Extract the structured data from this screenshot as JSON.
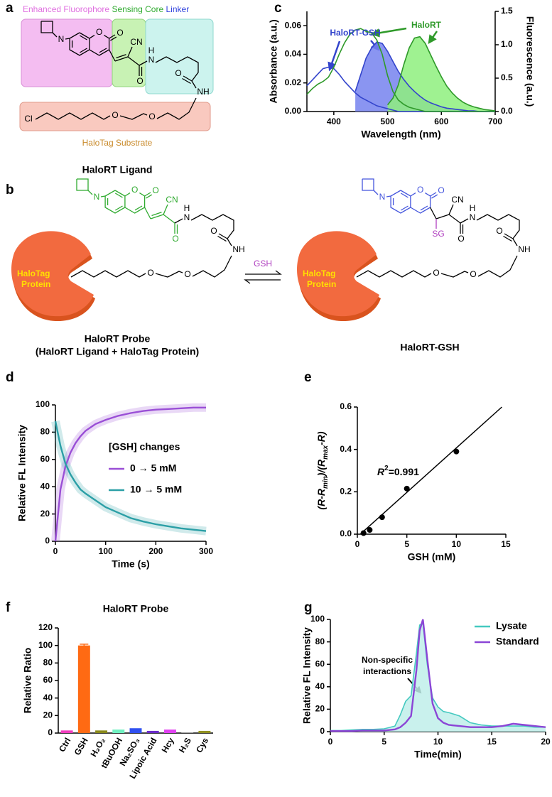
{
  "figure": {
    "panel_labels": [
      "a",
      "b",
      "c",
      "d",
      "e",
      "f",
      "g"
    ],
    "a": {
      "regions": [
        "Enhanced Fluorophore",
        "Sensing Core",
        "Linker",
        "HaloTag Substrate"
      ],
      "caption": "HaloRT Ligand"
    },
    "b": {
      "protein": [
        "HaloTag",
        "Protein"
      ],
      "reagent": "GSH",
      "left_caption": [
        "HaloRT Probe",
        "(HaloRT Ligand + HaloTag Protein)"
      ],
      "right_caption": "HaloRT-GSH"
    },
    "atoms": {
      "n_azetidine": "N",
      "o_ring": "O",
      "o_lactone": "O",
      "cn": "CN",
      "n_amide": "N",
      "h_amide": "H",
      "o_amide": "O",
      "o_linker": "O",
      "nh": "NH",
      "cl": "Cl",
      "o_ether1": "O",
      "o_ether2": "O",
      "sg": "SG"
    }
  },
  "chart_data": [
    {
      "type": "line",
      "xlabel": "Wavelength (nm)",
      "ylabel": "Absorbance (a.u.)",
      "y2label": "Fluorescence (a.u.)",
      "x": [
        350,
        360,
        370,
        380,
        390,
        400,
        410,
        420,
        430,
        440,
        450,
        460,
        470,
        480,
        490,
        500,
        510,
        520,
        530,
        540,
        550,
        560,
        570,
        580,
        590,
        600,
        610,
        620,
        630,
        640,
        650,
        660,
        670,
        680,
        690,
        700
      ],
      "xlim": [
        350,
        700
      ],
      "xticks": [
        400,
        500,
        600,
        700
      ],
      "ylim": [
        0,
        0.07
      ],
      "yticks": [
        {
          "value": 0,
          "label": "0.00"
        },
        0.02,
        0.04,
        0.06
      ],
      "y2lim": [
        0,
        1.5
      ],
      "y2ticks": [
        {
          "value": 0,
          "label": "0.0"
        },
        0.5,
        {
          "value": 1,
          "label": "1.0"
        },
        1.5
      ],
      "series": [
        {
          "color": "#3344cc",
          "fill_color": "#7683ee",
          "axis": "y2",
          "values": [
            null,
            null,
            null,
            null,
            null,
            null,
            null,
            null,
            null,
            0.3,
            0.55,
            0.8,
            0.95,
            1.04,
            1.02,
            0.9,
            0.75,
            0.6,
            0.48,
            0.38,
            0.3,
            0.23,
            0.17,
            0.13,
            0.1,
            0.07,
            0.05,
            0.04,
            0.03,
            0.02,
            0.01,
            0.01,
            0,
            0,
            0,
            0
          ]
        },
        {
          "color": "#2f9a2a",
          "fill_color": "#8ef07e",
          "axis": "y2",
          "values": [
            null,
            null,
            null,
            null,
            null,
            null,
            null,
            null,
            null,
            null,
            null,
            null,
            null,
            null,
            null,
            0.1,
            0.2,
            0.4,
            0.7,
            0.95,
            1.1,
            1.12,
            1.02,
            0.85,
            0.68,
            0.52,
            0.38,
            0.28,
            0.2,
            0.14,
            0.1,
            0.07,
            0.05,
            0.03,
            0.02,
            0.01
          ]
        },
        {
          "color": "#3344cc",
          "values": [
            0.018,
            0.022,
            0.026,
            0.03,
            0.031,
            0.03,
            0.026,
            0.021,
            0.017,
            0.013,
            0.01,
            0.008,
            0.006,
            0.004,
            0.003,
            0.002,
            0.001,
            0,
            0,
            0,
            0,
            0,
            0,
            0,
            0,
            0,
            0,
            0,
            0,
            0,
            0,
            0,
            0,
            0,
            0,
            0
          ]
        },
        {
          "color": "#2f9a2a",
          "values": [
            0.012,
            0.016,
            0.019,
            0.021,
            0.024,
            0.031,
            0.04,
            0.048,
            0.054,
            0.057,
            0.058,
            0.056,
            0.055,
            0.05,
            0.04,
            0.025,
            0.014,
            0.008,
            0.005,
            0.003,
            0.002,
            0.001,
            0,
            0,
            0,
            0,
            0,
            0,
            0,
            0,
            0,
            0,
            0,
            0,
            0,
            0
          ]
        }
      ],
      "annotations": [
        "HaloRT-GSH",
        "HaloRT"
      ]
    },
    {
      "type": "line",
      "xlabel": "Time (s)",
      "ylabel": "Relative FL Intensity",
      "x": [
        0,
        10,
        20,
        30,
        40,
        50,
        60,
        80,
        100,
        125,
        150,
        175,
        200,
        225,
        250,
        275,
        300
      ],
      "xlim": [
        0,
        300
      ],
      "xticks": [
        0,
        100,
        200,
        300
      ],
      "ylim": [
        0,
        100
      ],
      "yticks": [
        0,
        20,
        40,
        60,
        80,
        100
      ],
      "scatter_band": true,
      "legend": "center right",
      "legend_title": "[GSH] changes",
      "series": [
        {
          "name": "0 → 5 mM",
          "color": "#9a4fd6",
          "values": [
            0,
            38,
            55,
            65,
            72,
            77,
            81,
            86,
            89,
            92,
            94,
            95.5,
            96.5,
            97,
            97.5,
            98,
            98
          ]
        },
        {
          "name": "10 → 5 mM",
          "color": "#2b9fa6",
          "values": [
            88,
            70,
            57,
            49,
            43,
            38,
            35,
            30,
            25,
            21,
            17,
            14.5,
            12.5,
            11,
            9.5,
            8.5,
            7.5
          ]
        }
      ]
    },
    {
      "type": "scatter",
      "xlabel": "GSH (mM)",
      "ylabel_parts": [
        "(R-R",
        "min",
        ")/(R",
        "max",
        "-R)"
      ],
      "x": [
        0.625,
        1.25,
        2.5,
        5,
        10
      ],
      "values": [
        0.005,
        0.02,
        0.08,
        0.215,
        0.39
      ],
      "xlim": [
        0,
        15
      ],
      "xticks": [
        0,
        5,
        10,
        15
      ],
      "ylim": [
        0,
        0.6
      ],
      "yticks": [
        {
          "value": 0,
          "label": "0.0"
        },
        0.2,
        0.4,
        0.6
      ],
      "fit": {
        "x": [
          0.3,
          14.6
        ],
        "values": [
          0,
          0.6
        ]
      },
      "color": "#000000",
      "annotation": [
        "R",
        "2",
        "=0.991"
      ]
    },
    {
      "type": "bar",
      "title": "HaloRT Probe",
      "ylabel": "Relative Ratio",
      "categories": [
        "Ctrl",
        "GSH",
        "H₂O₂",
        "tBuOOH",
        "Na₂SO₃",
        "Lipoic Acid",
        "Hcy",
        "H₂S",
        "Cys"
      ],
      "values": [
        3,
        100,
        3,
        4,
        5.5,
        2.5,
        4,
        0.5,
        2.5
      ],
      "errors": [
        null,
        1.5,
        null,
        null,
        null,
        null,
        null,
        null,
        null
      ],
      "colors": [
        "#f03cbd",
        "#ff6a13",
        "#8a8a1a",
        "#6ff0c0",
        "#3050f0",
        "#6a2bc8",
        "#e040f0",
        "#a0a0a0",
        "#909020"
      ],
      "ylim": [
        0,
        120
      ],
      "yticks": [
        0,
        20,
        40,
        60,
        80,
        100,
        120
      ]
    },
    {
      "type": "line",
      "xlabel": "Time(min)",
      "ylabel": "Relative FL Intensity",
      "x": [
        0,
        1,
        2,
        3,
        4,
        5,
        6,
        6.5,
        7,
        7.5,
        8,
        8.3,
        8.6,
        9,
        9.5,
        10,
        10.5,
        11,
        12,
        13,
        14,
        15,
        16,
        17,
        18,
        19,
        20
      ],
      "xlim": [
        0,
        20
      ],
      "xticks": [
        0,
        5,
        10,
        15,
        20
      ],
      "ylim": [
        0,
        100
      ],
      "yticks": [
        0,
        20,
        40,
        60,
        80,
        100
      ],
      "legend": "upper right",
      "series": [
        {
          "name": "Lysate",
          "color": "#45c9c0",
          "fill_color": "#bfeeea",
          "values": [
            1,
            1,
            1.5,
            2,
            2,
            2.5,
            5,
            15,
            27,
            32,
            70,
            95,
            97,
            60,
            30,
            22,
            18,
            17,
            14,
            8,
            6,
            5,
            5,
            5,
            5,
            4,
            4
          ]
        },
        {
          "name": "Standard",
          "color": "#8b45d6",
          "values": [
            0.5,
            0.5,
            0.5,
            1,
            1,
            1,
            2,
            4,
            8,
            14,
            55,
            90,
            100,
            65,
            25,
            12,
            8,
            6,
            5,
            4,
            4,
            4,
            5,
            7,
            6,
            5,
            4
          ]
        }
      ],
      "annotation": [
        "Non-specific",
        "interactions"
      ]
    }
  ]
}
